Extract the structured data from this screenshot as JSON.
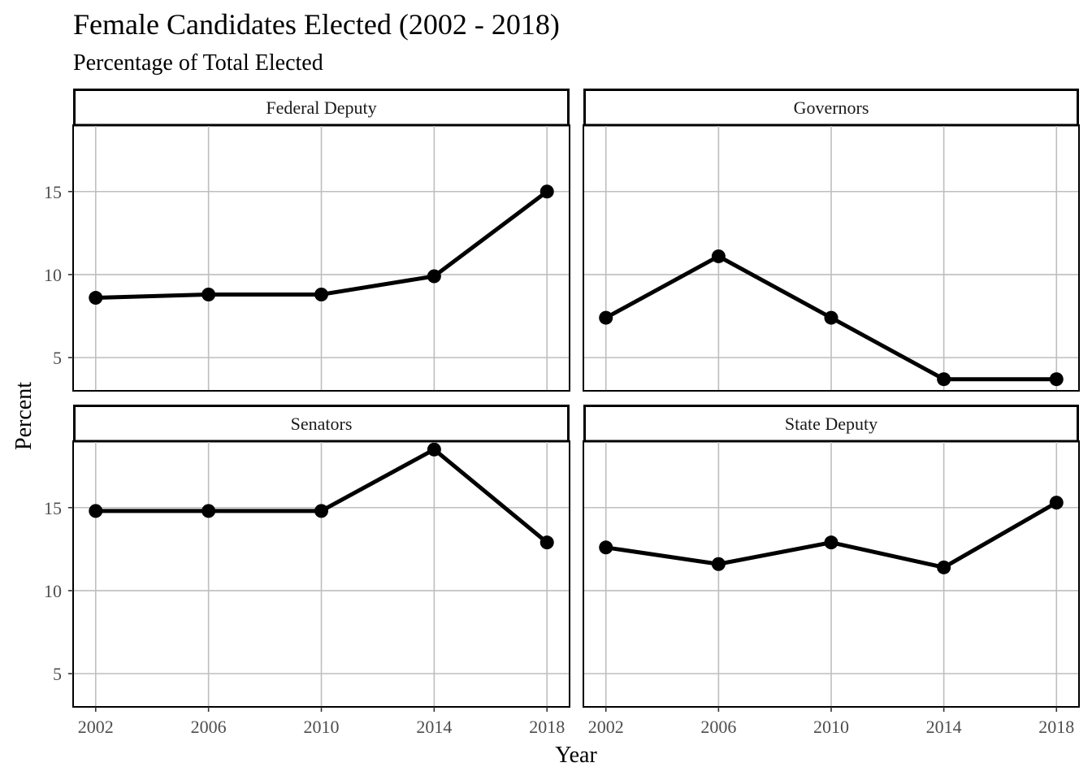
{
  "chart_data": {
    "type": "line",
    "title": "Female Candidates Elected (2002 - 2018)",
    "subtitle": "Percentage of Total Elected",
    "xlabel": "Year",
    "ylabel": "Percent",
    "x": [
      2002,
      2006,
      2010,
      2014,
      2018
    ],
    "xlim": [
      2001.2,
      2018.8
    ],
    "ylim": [
      3,
      19
    ],
    "yticks": [
      5,
      10,
      15
    ],
    "grid": true,
    "legend": "none",
    "colors": {
      "line": "#000000",
      "grid": "#bebebe",
      "border": "#000000"
    },
    "panels": [
      {
        "name": "Federal Deputy",
        "values": [
          8.6,
          8.8,
          8.8,
          9.9,
          15.0
        ]
      },
      {
        "name": "Governors",
        "values": [
          7.4,
          11.1,
          7.4,
          3.7,
          3.7
        ]
      },
      {
        "name": "Senators",
        "values": [
          14.8,
          14.8,
          14.8,
          18.5,
          12.9
        ]
      },
      {
        "name": "State Deputy",
        "values": [
          12.6,
          11.6,
          12.9,
          11.4,
          15.3
        ]
      }
    ]
  }
}
